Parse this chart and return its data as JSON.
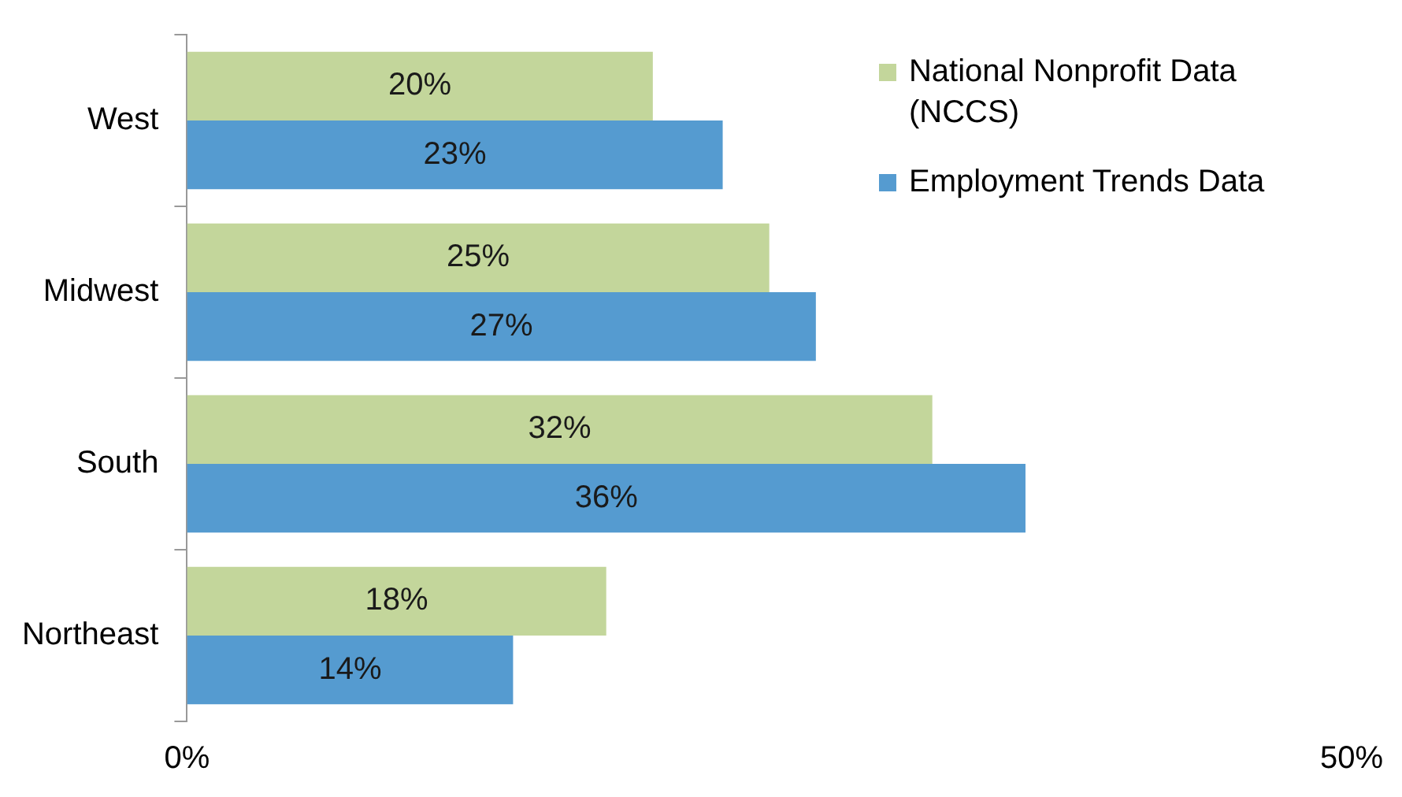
{
  "chart_data": {
    "type": "bar",
    "orientation": "horizontal",
    "categories": [
      "West",
      "Midwest",
      "South",
      "Northeast"
    ],
    "series": [
      {
        "name": "National Nonprofit Data (NCCS)",
        "color": "#c3d69b",
        "values": [
          20,
          25,
          32,
          18
        ],
        "value_labels": [
          "20%",
          "25%",
          "32%",
          "18%"
        ]
      },
      {
        "name": "Employment Trends Data",
        "color": "#559bd0",
        "values": [
          23,
          27,
          36,
          14
        ],
        "value_labels": [
          "23%",
          "27%",
          "36%",
          "14%"
        ]
      }
    ],
    "xlim": [
      0,
      50
    ],
    "xticks": [
      {
        "value": 0,
        "label": "0%"
      },
      {
        "value": 50,
        "label": "50%"
      }
    ],
    "grid": false,
    "legend": "top right"
  }
}
